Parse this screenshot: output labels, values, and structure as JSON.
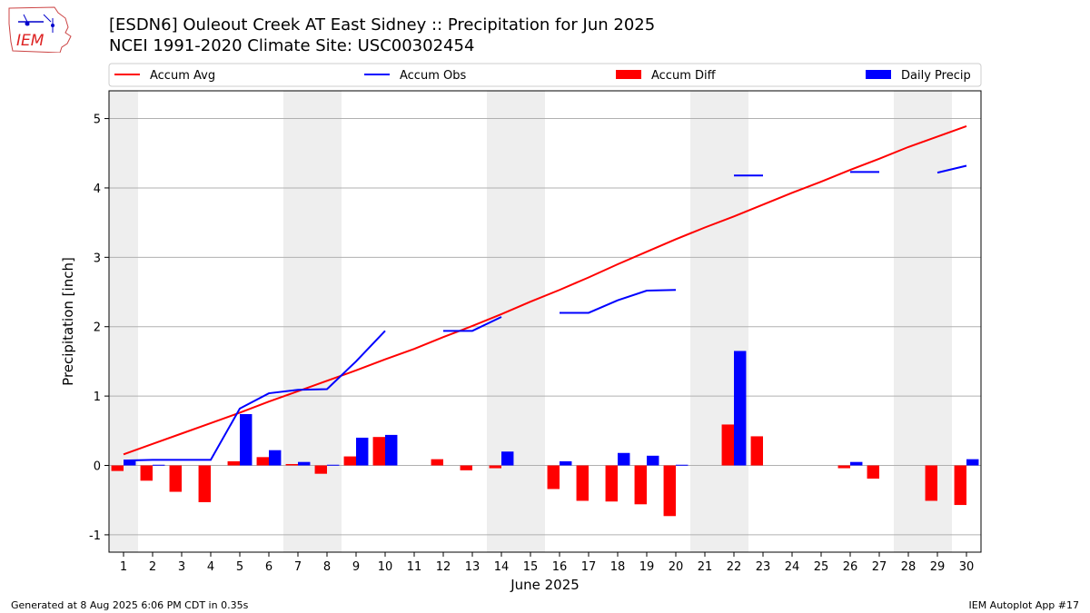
{
  "header": {
    "title_line1": "[ESDN6] Ouleout Creek  AT East Sidney :: Precipitation for Jun 2025",
    "title_line2": "NCEI 1991-2020 Climate Site: USC00302454",
    "logo_text": "IEM"
  },
  "footer": {
    "generated": "Generated at 8 Aug 2025 6:06 PM CDT in 0.35s",
    "app": "IEM Autoplot App #17"
  },
  "chart_data": {
    "type": "bar",
    "xlabel": "June 2025",
    "ylabel": "Precipitation [inch]",
    "xlim": [
      0.5,
      30.5
    ],
    "ylim": [
      -1.25,
      5.4
    ],
    "yticks": [
      -1,
      0,
      1,
      2,
      3,
      4,
      5
    ],
    "days": [
      1,
      2,
      3,
      4,
      5,
      6,
      7,
      8,
      9,
      10,
      11,
      12,
      13,
      14,
      15,
      16,
      17,
      18,
      19,
      20,
      21,
      22,
      23,
      24,
      25,
      26,
      27,
      28,
      29,
      30
    ],
    "weekend_days": [
      1,
      7,
      8,
      14,
      15,
      21,
      22,
      28,
      29
    ],
    "grid": "horizontal",
    "legend_placement": "top",
    "legend": [
      "Accum Avg",
      "Accum Obs",
      "Accum Diff",
      "Daily Precip"
    ],
    "colors": {
      "accum_avg": "#ff0000",
      "accum_obs": "#0000ff",
      "accum_diff": "#ff0000",
      "daily_precip": "#0000ff",
      "weekend": "#eeeeee"
    },
    "series": [
      {
        "name": "Accum Avg",
        "values": [
          0.16,
          0.31,
          0.46,
          0.61,
          0.76,
          0.92,
          1.07,
          1.22,
          1.37,
          1.53,
          1.68,
          1.85,
          2.01,
          2.18,
          2.36,
          2.53,
          2.71,
          2.9,
          3.08,
          3.26,
          3.43,
          3.59,
          3.76,
          3.93,
          4.09,
          4.26,
          4.42,
          4.59,
          4.74,
          4.89
        ]
      },
      {
        "name": "Accum Obs",
        "values": [
          0.07,
          0.08,
          0.08,
          0.08,
          0.82,
          1.04,
          1.09,
          1.1,
          1.5,
          1.94,
          null,
          1.94,
          1.94,
          2.14,
          null,
          2.2,
          2.2,
          2.38,
          2.52,
          2.53,
          null,
          4.18,
          4.18,
          null,
          null,
          4.23,
          4.23,
          null,
          4.22,
          4.32
        ]
      },
      {
        "name": "Accum Diff",
        "values": [
          -0.08,
          -0.22,
          -0.38,
          -0.53,
          0.06,
          0.12,
          0.02,
          -0.12,
          0.13,
          0.41,
          null,
          0.09,
          -0.07,
          -0.04,
          null,
          -0.34,
          -0.51,
          -0.52,
          -0.56,
          -0.73,
          null,
          0.59,
          0.42,
          null,
          null,
          -0.04,
          -0.19,
          null,
          -0.51,
          -0.57
        ]
      },
      {
        "name": "Daily Precip",
        "values": [
          0.07,
          0.01,
          0,
          0,
          0.74,
          0.22,
          0.05,
          0.01,
          0.4,
          0.44,
          0,
          0,
          0,
          0.2,
          0,
          0.06,
          0,
          0.18,
          0.14,
          0.01,
          0,
          1.65,
          0,
          0,
          0,
          0.05,
          0,
          0,
          0,
          0.09
        ]
      }
    ]
  }
}
